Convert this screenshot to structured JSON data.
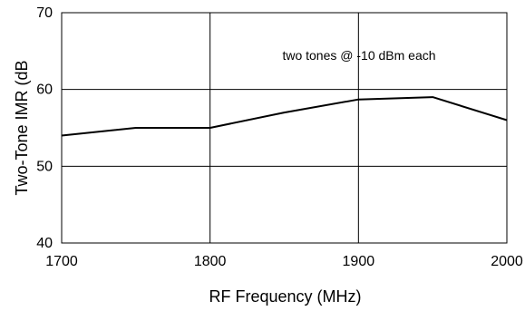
{
  "chart_data": {
    "type": "line",
    "title": "",
    "xlabel": "RF Frequency (MHz)",
    "ylabel": "Two-Tone IMR (dB",
    "annotation": "two tones @ -10 dBm each",
    "xlim": [
      1700,
      2000
    ],
    "ylim": [
      40,
      70
    ],
    "x_ticks": [
      1700,
      1800,
      1900,
      2000
    ],
    "y_ticks": [
      40,
      50,
      60,
      70
    ],
    "x_tick_labels": [
      "1700",
      "1800",
      "1900",
      "2000"
    ],
    "y_tick_labels": [
      "40",
      "50",
      "60",
      "70"
    ],
    "grid": true,
    "legend": "none",
    "line_color": "#000000",
    "series": [
      {
        "x": [
          1700,
          1750,
          1800,
          1850,
          1900,
          1950,
          2000
        ],
        "y": [
          54,
          55,
          55,
          57,
          58.7,
          59,
          56
        ]
      }
    ]
  }
}
